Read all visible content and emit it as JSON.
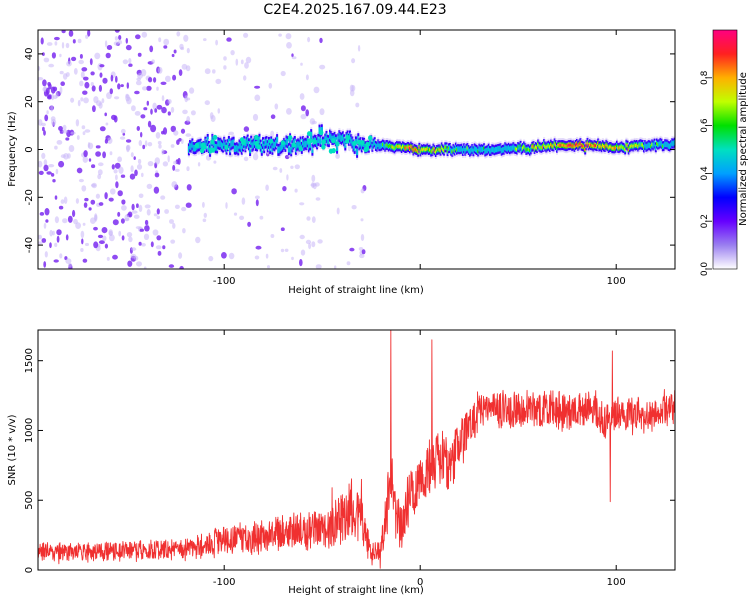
{
  "title": "C2E4.2025.167.09.44.E23",
  "colors": {
    "snr_line": "#f03030",
    "ridge_low": "#6600ff",
    "ridge_mid": "#00e0c0",
    "ridge_high": "#ff2020",
    "noise": "#7b2cf0"
  },
  "chart_data": [
    {
      "type": "heatmap",
      "name": "spectrogram",
      "xlabel": "Height of straight line (km)",
      "ylabel": "Frequency (Hz)",
      "xlim": [
        -195,
        130
      ],
      "ylim": [
        -50,
        50
      ],
      "xticks": [
        -100,
        0,
        100
      ],
      "xtick_labels": [
        "-100",
        "",
        "100"
      ],
      "yticks": [
        40,
        20,
        0,
        -20,
        -40
      ],
      "ytick_labels": [
        "40",
        "20",
        "0",
        "-20",
        "-40"
      ],
      "colorbar": {
        "label": "Normalized spectral amplitude",
        "range": [
          0,
          1
        ],
        "ticks": [
          0.0,
          0.2,
          0.4,
          0.6,
          0.8
        ],
        "tick_labels": [
          "0.0",
          "0.2",
          "0.4",
          "0.6",
          "0.8"
        ],
        "colormap": [
          "#ffffff",
          "#9a7ff0",
          "#6600ff",
          "#0000ff",
          "#00a0ff",
          "#00e0c0",
          "#00e000",
          "#c0ff00",
          "#ffb000",
          "#ff2020",
          "#ff0080"
        ]
      },
      "ridge": {
        "x": [
          -118,
          -100,
          -80,
          -60,
          -50,
          -40,
          -30,
          -20,
          -10,
          0,
          20,
          40,
          60,
          80,
          100,
          130
        ],
        "y": [
          2,
          2,
          2,
          2,
          4,
          4,
          2,
          2,
          1,
          0,
          0,
          0,
          1,
          2,
          1,
          2
        ],
        "amplitude": [
          0.25,
          0.3,
          0.3,
          0.3,
          0.3,
          0.35,
          0.35,
          0.55,
          0.75,
          0.85,
          0.55,
          0.45,
          0.7,
          0.9,
          0.75,
          0.5
        ]
      },
      "noise_region_x": [
        -195,
        -28
      ]
    },
    {
      "type": "line",
      "name": "snr",
      "xlabel": "Height of straight line (km)",
      "ylabel": "SNR (10 * v/v)",
      "xlim": [
        -195,
        130
      ],
      "ylim": [
        0,
        1720
      ],
      "xticks": [
        -100,
        0,
        100
      ],
      "xtick_labels": [
        "-100",
        "0",
        "100"
      ],
      "yticks": [
        0,
        500,
        1000,
        1500
      ],
      "ytick_labels": [
        "0",
        "500",
        "1000",
        "1500"
      ],
      "envelope": {
        "x": [
          -195,
          -150,
          -120,
          -100,
          -80,
          -60,
          -45,
          -35,
          -30,
          -25,
          -20,
          -15,
          -12,
          -10,
          -5,
          0,
          10,
          15,
          20,
          25,
          30,
          50,
          70,
          90,
          95,
          100,
          110,
          130
        ],
        "mean": [
          130,
          135,
          150,
          210,
          240,
          280,
          300,
          450,
          380,
          120,
          130,
          700,
          400,
          250,
          550,
          650,
          800,
          750,
          900,
          1000,
          1150,
          1150,
          1150,
          1150,
          1050,
          1120,
          1100,
          1150
        ],
        "spread": [
          70,
          70,
          75,
          110,
          120,
          140,
          140,
          250,
          200,
          80,
          90,
          300,
          250,
          180,
          200,
          200,
          220,
          220,
          200,
          150,
          130,
          130,
          130,
          130,
          130,
          130,
          130,
          130
        ]
      },
      "peaks": [
        {
          "x": -45,
          "y": 590
        },
        {
          "x": -30,
          "y": 650
        },
        {
          "x": -15,
          "y": 1720
        },
        {
          "x": 6,
          "y": 1650
        },
        {
          "x": 98,
          "y": 1570
        },
        {
          "x": 97,
          "y": 490
        }
      ]
    }
  ]
}
